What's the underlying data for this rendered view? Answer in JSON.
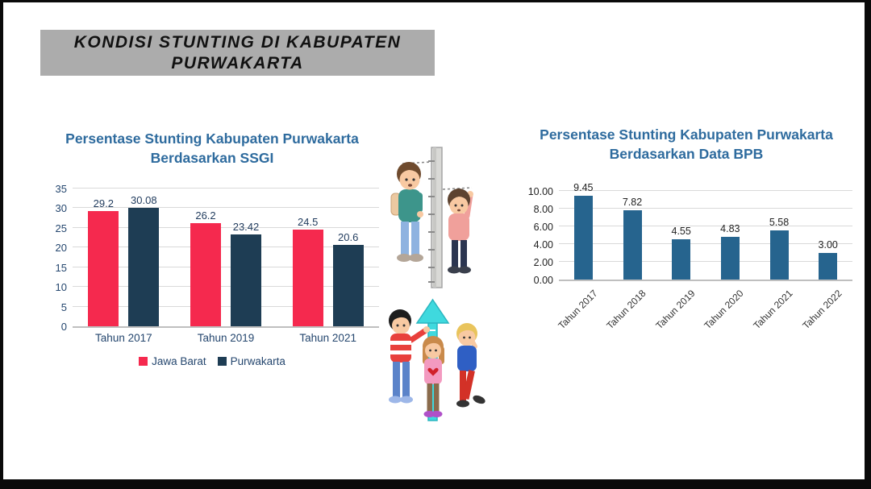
{
  "banner": {
    "line1": "KONDISI STUNTING DI KABUPATEN",
    "line2": "PURWAKARTA"
  },
  "colors": {
    "banner_bg": "#ACACAC",
    "chart_title_blue": "#2E6B9E",
    "ssgi_axis_text": "#24466E",
    "jawa_barat_red": "#F5294E",
    "purwakarta_navy": "#1E3D54",
    "bpb_bar_blue": "#26648E"
  },
  "chart_data": [
    {
      "type": "bar",
      "title": "Persentase Stunting Kabupaten Purwakarta Berdasarkan SSGI",
      "title_lines": [
        "Persentase Stunting Kabupaten Purwakarta",
        "Berdasarkan SSGI"
      ],
      "categories": [
        "Tahun 2017",
        "Tahun 2019",
        "Tahun 2021"
      ],
      "series": [
        {
          "name": "Jawa Barat",
          "color": "#F5294E",
          "values": [
            29.2,
            26.2,
            24.5
          ],
          "labels": [
            "29.2",
            "26.2",
            "24.5"
          ]
        },
        {
          "name": "Purwakarta",
          "color": "#1E3D54",
          "values": [
            30.08,
            23.42,
            20.6
          ],
          "labels": [
            "30.08",
            "23.42",
            "20.6"
          ]
        }
      ],
      "xlabel": "",
      "ylabel": "",
      "ylim": [
        0,
        35
      ],
      "yticks": [
        0,
        5,
        10,
        15,
        20,
        25,
        30,
        35
      ],
      "ytick_labels": [
        "0",
        "5",
        "10",
        "15",
        "20",
        "25",
        "30",
        "35"
      ],
      "grid": true,
      "legend_position": "bottom"
    },
    {
      "type": "bar",
      "title": "Persentase Stunting Kabupaten Purwakarta Berdasarkan Data BPB",
      "title_lines": [
        "Persentase Stunting Kabupaten Purwakarta",
        "Berdasarkan Data BPB"
      ],
      "categories": [
        "Tahun 2017",
        "Tahun 2018",
        "Tahun 2019",
        "Tahun 2020",
        "Tahun 2021",
        "Tahun 2022"
      ],
      "series": [
        {
          "name": "Persentase Stunting",
          "color": "#26648E",
          "values": [
            9.45,
            7.82,
            4.55,
            4.83,
            5.58,
            3.0
          ],
          "labels": [
            "9.45",
            "7.82",
            "4.55",
            "4.83",
            "5.58",
            "3.00"
          ]
        }
      ],
      "xlabel": "",
      "ylabel": "",
      "ylim": [
        0,
        10
      ],
      "yticks": [
        0,
        2,
        4,
        6,
        8,
        10
      ],
      "ytick_labels": [
        "0.00",
        "2.00",
        "4.00",
        "6.00",
        "8.00",
        "10.00"
      ],
      "grid": true,
      "legend_position": "none",
      "xtick_rotation": -45
    }
  ],
  "illustrations": {
    "top": "children-height-measurement-illustration",
    "bottom": "children-growth-arrow-illustration"
  }
}
